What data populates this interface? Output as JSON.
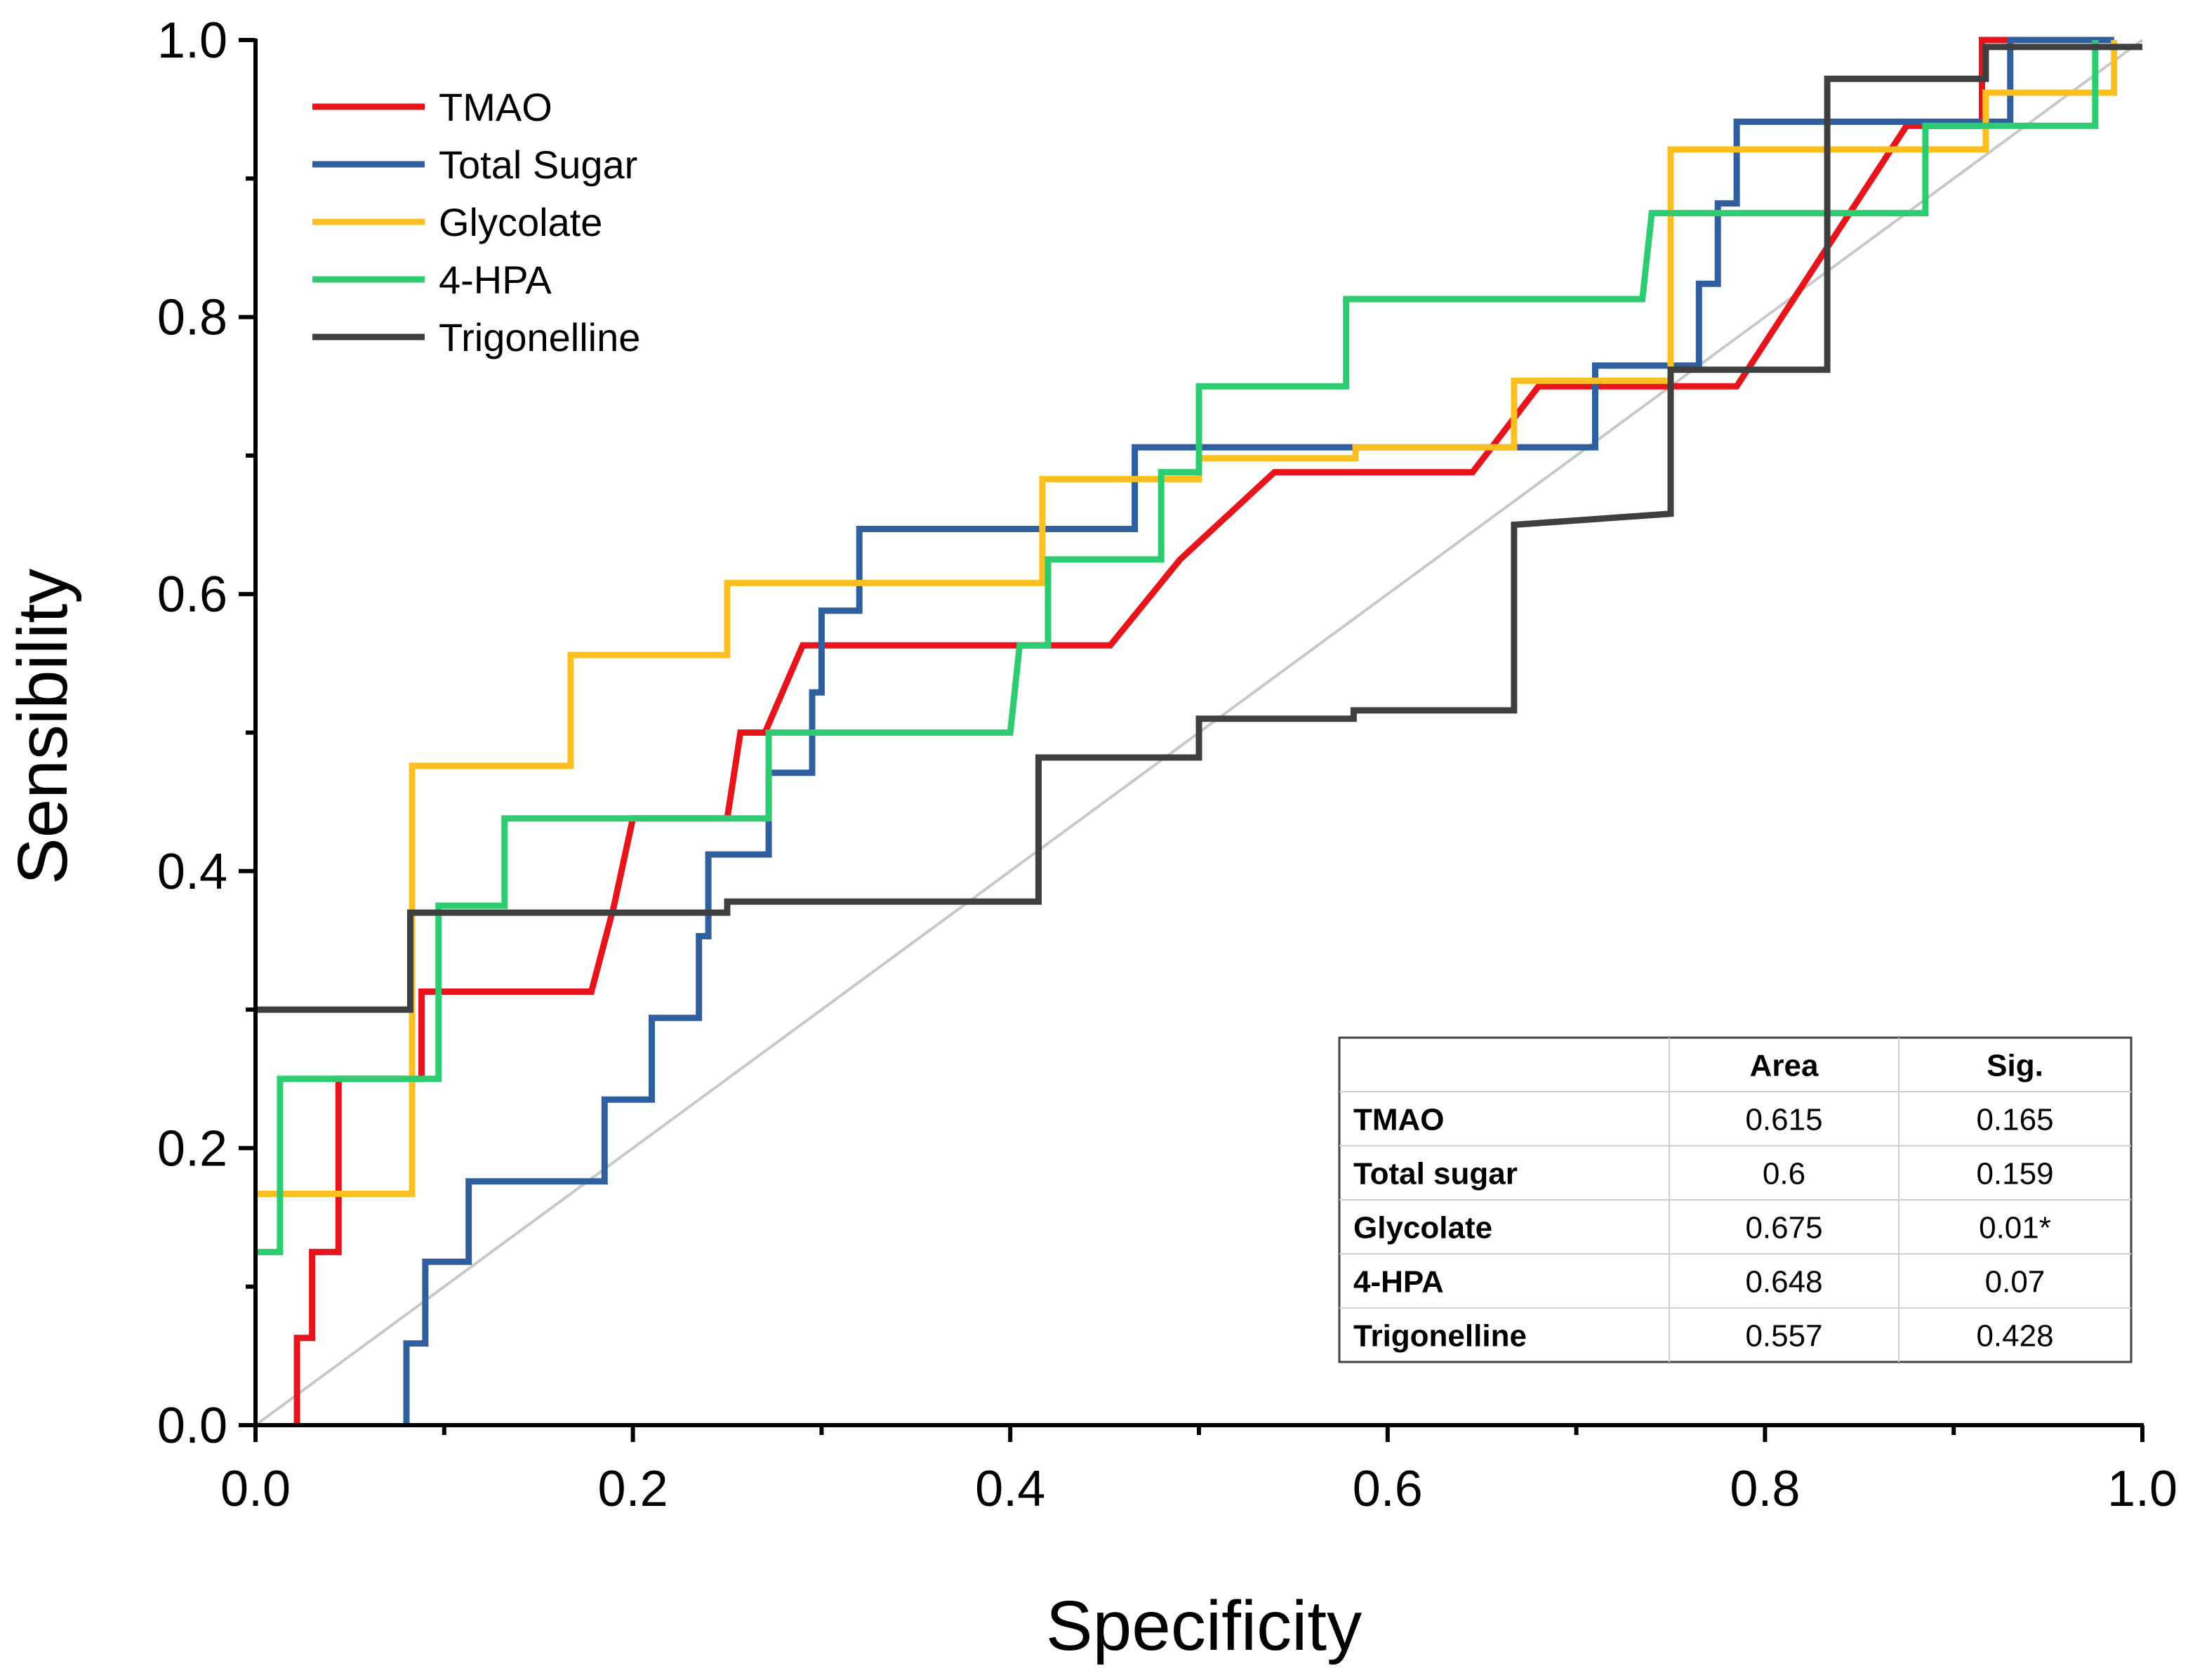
{
  "chart_data": {
    "type": "line",
    "title": "",
    "xlabel": "Specificity",
    "ylabel": "Sensibility",
    "xlim": [
      0,
      1
    ],
    "ylim": [
      0,
      1
    ],
    "xticks": [
      "0.0",
      "0.2",
      "0.4",
      "0.6",
      "0.8",
      "1.0"
    ],
    "yticks": [
      "0.0",
      "0.2",
      "0.4",
      "0.6",
      "0.8",
      "1.0"
    ],
    "reference_line": {
      "x": [
        0,
        1
      ],
      "y": [
        0,
        1
      ],
      "color": "#c8c8c8"
    },
    "series": [
      {
        "name": "TMAO",
        "color": "#e8141b",
        "points": [
          [
            0.022,
            0
          ],
          [
            0.022,
            0.063
          ],
          [
            0.03,
            0.063
          ],
          [
            0.03,
            0.125
          ],
          [
            0.044,
            0.125
          ],
          [
            0.044,
            0.25
          ],
          [
            0.044,
            0.25
          ],
          [
            0.088,
            0.25
          ],
          [
            0.088,
            0.313
          ],
          [
            0.178,
            0.313
          ],
          [
            0.19,
            0.375
          ],
          [
            0.2,
            0.438
          ],
          [
            0.25,
            0.438
          ],
          [
            0.257,
            0.5
          ],
          [
            0.27,
            0.5
          ],
          [
            0.29,
            0.563
          ],
          [
            0.453,
            0.563
          ],
          [
            0.49,
            0.625
          ],
          [
            0.54,
            0.688
          ],
          [
            0.645,
            0.688
          ],
          [
            0.68,
            0.75
          ],
          [
            0.785,
            0.75
          ],
          [
            0.875,
            0.938
          ],
          [
            0.915,
            0.938
          ],
          [
            0.915,
            1.0
          ],
          [
            0.985,
            1.0
          ]
        ]
      },
      {
        "name": "Total Sugar",
        "color": "#2f5f9e",
        "points": [
          [
            0.08,
            0
          ],
          [
            0.08,
            0.059
          ],
          [
            0.09,
            0.059
          ],
          [
            0.09,
            0.118
          ],
          [
            0.113,
            0.118
          ],
          [
            0.113,
            0.176
          ],
          [
            0.185,
            0.176
          ],
          [
            0.185,
            0.235
          ],
          [
            0.21,
            0.235
          ],
          [
            0.21,
            0.294
          ],
          [
            0.235,
            0.294
          ],
          [
            0.235,
            0.353
          ],
          [
            0.24,
            0.353
          ],
          [
            0.24,
            0.412
          ],
          [
            0.272,
            0.412
          ],
          [
            0.272,
            0.471
          ],
          [
            0.295,
            0.471
          ],
          [
            0.295,
            0.529
          ],
          [
            0.3,
            0.529
          ],
          [
            0.3,
            0.588
          ],
          [
            0.32,
            0.588
          ],
          [
            0.32,
            0.647
          ],
          [
            0.466,
            0.647
          ],
          [
            0.466,
            0.706
          ],
          [
            0.71,
            0.706
          ],
          [
            0.71,
            0.765
          ],
          [
            0.765,
            0.765
          ],
          [
            0.765,
            0.824
          ],
          [
            0.775,
            0.824
          ],
          [
            0.775,
            0.882
          ],
          [
            0.785,
            0.882
          ],
          [
            0.785,
            0.941
          ],
          [
            0.93,
            0.941
          ],
          [
            0.93,
            1.0
          ],
          [
            0.985,
            1.0
          ]
        ]
      },
      {
        "name": "Glycolate",
        "color": "#fcbf21",
        "points": [
          [
            0,
            0.167
          ],
          [
            0.083,
            0.167
          ],
          [
            0.083,
            0.476
          ],
          [
            0.167,
            0.476
          ],
          [
            0.167,
            0.556
          ],
          [
            0.25,
            0.556
          ],
          [
            0.25,
            0.608
          ],
          [
            0.417,
            0.608
          ],
          [
            0.417,
            0.683
          ],
          [
            0.5,
            0.683
          ],
          [
            0.5,
            0.698
          ],
          [
            0.583,
            0.698
          ],
          [
            0.583,
            0.706
          ],
          [
            0.667,
            0.706
          ],
          [
            0.667,
            0.754
          ],
          [
            0.75,
            0.754
          ],
          [
            0.75,
            0.921
          ],
          [
            0.917,
            0.921
          ],
          [
            0.917,
            0.962
          ],
          [
            0.985,
            0.962
          ],
          [
            0.985,
            1.0
          ]
        ]
      },
      {
        "name": "4-HPA",
        "color": "#2ecc71",
        "points": [
          [
            0,
            0.125
          ],
          [
            0.013,
            0.125
          ],
          [
            0.013,
            0.25
          ],
          [
            0.097,
            0.25
          ],
          [
            0.097,
            0.375
          ],
          [
            0.132,
            0.375
          ],
          [
            0.132,
            0.438
          ],
          [
            0.272,
            0.438
          ],
          [
            0.272,
            0.5
          ],
          [
            0.4,
            0.5
          ],
          [
            0.405,
            0.563
          ],
          [
            0.42,
            0.563
          ],
          [
            0.42,
            0.625
          ],
          [
            0.48,
            0.625
          ],
          [
            0.48,
            0.688
          ],
          [
            0.5,
            0.688
          ],
          [
            0.5,
            0.75
          ],
          [
            0.578,
            0.75
          ],
          [
            0.578,
            0.813
          ],
          [
            0.735,
            0.813
          ],
          [
            0.74,
            0.875
          ],
          [
            0.885,
            0.875
          ],
          [
            0.885,
            0.938
          ],
          [
            0.975,
            0.938
          ],
          [
            0.975,
            1.0
          ]
        ]
      },
      {
        "name": "Trigonelline",
        "color": "#3f3f3f",
        "points": [
          [
            0,
            0.3
          ],
          [
            0.082,
            0.3
          ],
          [
            0.082,
            0.37
          ],
          [
            0.25,
            0.37
          ],
          [
            0.25,
            0.378
          ],
          [
            0.415,
            0.378
          ],
          [
            0.415,
            0.482
          ],
          [
            0.5,
            0.482
          ],
          [
            0.5,
            0.51
          ],
          [
            0.582,
            0.51
          ],
          [
            0.582,
            0.516
          ],
          [
            0.667,
            0.516
          ],
          [
            0.667,
            0.65
          ],
          [
            0.75,
            0.658
          ],
          [
            0.75,
            0.762
          ],
          [
            0.833,
            0.762
          ],
          [
            0.833,
            0.972
          ],
          [
            0.917,
            0.972
          ],
          [
            0.917,
            0.995
          ],
          [
            1.0,
            0.995
          ]
        ]
      }
    ],
    "legend": {
      "placement": "top-left"
    },
    "table": {
      "headers": [
        "",
        "Area",
        "Sig."
      ],
      "rows": [
        [
          "TMAO",
          "0.615",
          "0.165"
        ],
        [
          "Total sugar",
          "0.6",
          "0.159"
        ],
        [
          "Glycolate",
          "0.675",
          "0.01*"
        ],
        [
          "4-HPA",
          "0.648",
          "0.07"
        ],
        [
          "Trigonelline",
          "0.557",
          "0.428"
        ]
      ]
    }
  }
}
